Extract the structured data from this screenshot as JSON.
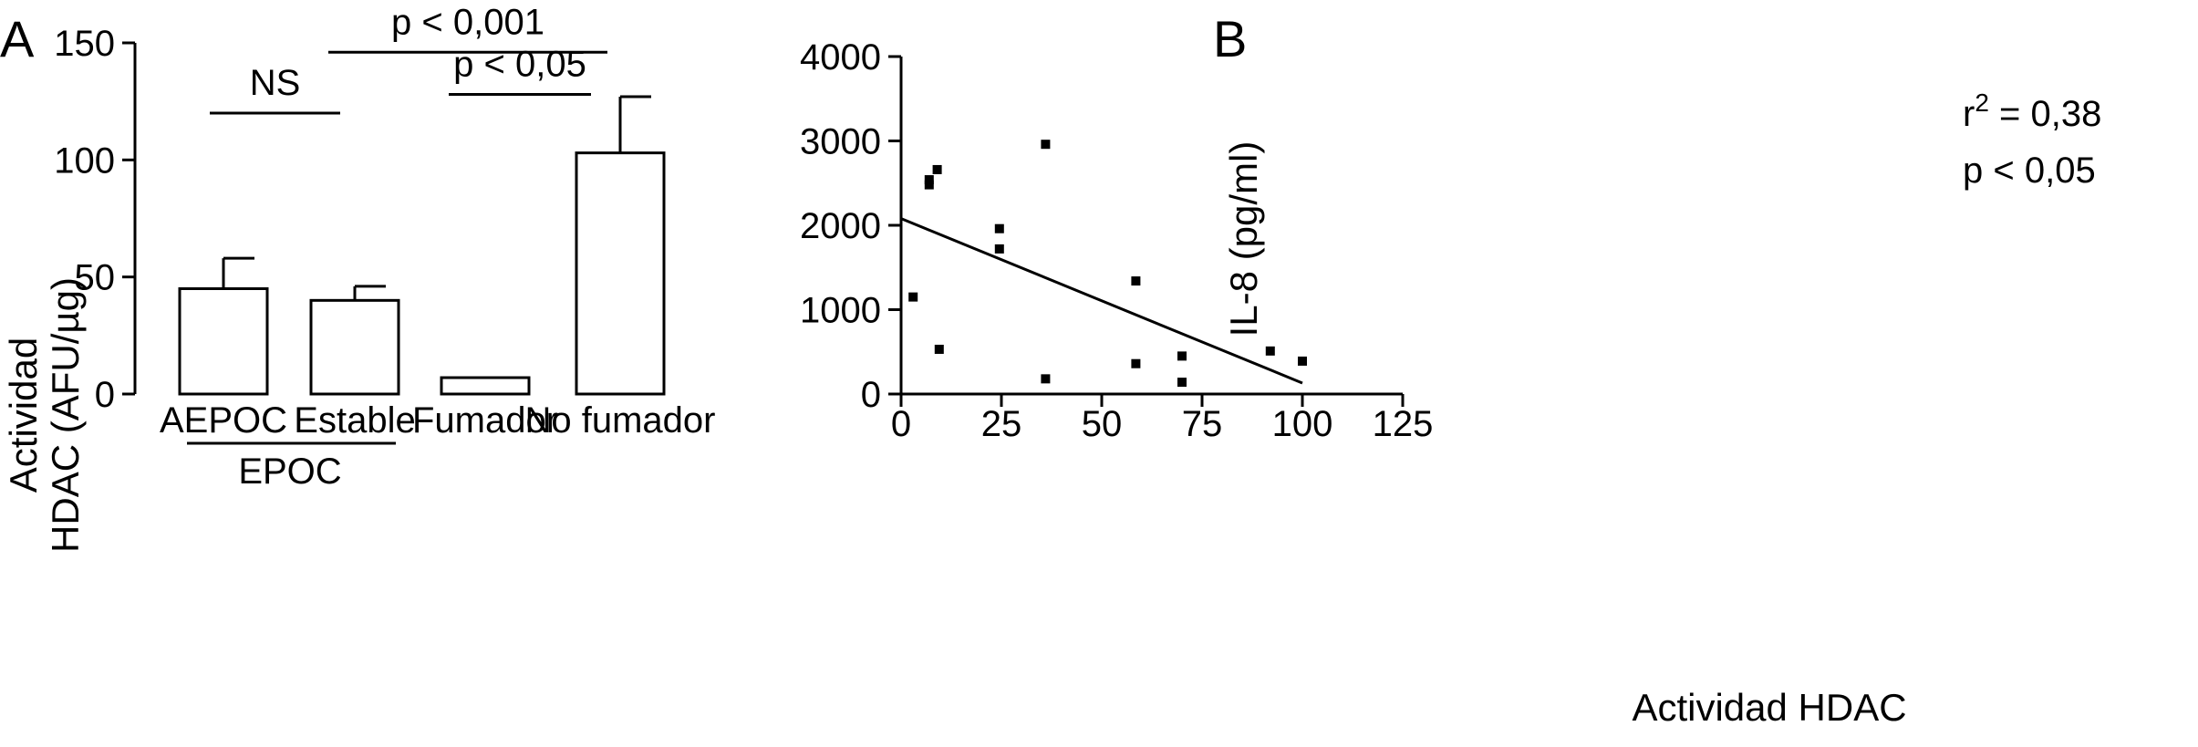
{
  "chart_data": [
    {
      "panel_letter": "A",
      "type": "bar",
      "categories": [
        "AEPOC",
        "Estable",
        "Fumador",
        "No fumador"
      ],
      "values": [
        45,
        40,
        7,
        103
      ],
      "error_upper": [
        58,
        46,
        7,
        127
      ],
      "ylim": [
        0,
        150
      ],
      "yticks": [
        "0",
        "50",
        "100",
        "150"
      ],
      "ylabel_lines": [
        "Actividad",
        "HDAC (AFU/µg)"
      ],
      "xlabel": "",
      "group_label": "EPOC",
      "significance": [
        {
          "label": "NS",
          "from": "AEPOC",
          "to": "Estable",
          "level": 120
        },
        {
          "label": "p < 0,001",
          "from": "Estable",
          "to": "No fumador",
          "level": 146
        },
        {
          "label": "p < 0,05",
          "from": "Fumador",
          "to": "No fumador",
          "level": 128
        }
      ]
    },
    {
      "panel_letter": "B",
      "type": "scatter",
      "x": [
        3,
        7,
        7,
        9,
        9.5,
        24.5,
        24.5,
        36,
        36,
        58.5,
        58.5,
        70,
        70,
        92,
        100
      ],
      "y": [
        1150,
        2480,
        2540,
        2660,
        530,
        1960,
        1720,
        2960,
        180,
        1340,
        360,
        450,
        140,
        510,
        390
      ],
      "trendline": {
        "x": [
          0,
          100
        ],
        "y": [
          2080,
          130
        ]
      },
      "xlim": [
        0,
        125
      ],
      "ylim": [
        0,
        4000
      ],
      "xticks": [
        "0",
        "25",
        "50",
        "75",
        "100",
        "125"
      ],
      "yticks": [
        "0",
        "1000",
        "2000",
        "3000",
        "4000"
      ],
      "xlabel": "Actividad HDAC",
      "ylabel": "IL-8 (pg/ml)",
      "stats": {
        "r_base": "r",
        "r_sup": "2",
        "r_value": " = 0,38",
        "p_text": "p < 0,05"
      }
    }
  ]
}
